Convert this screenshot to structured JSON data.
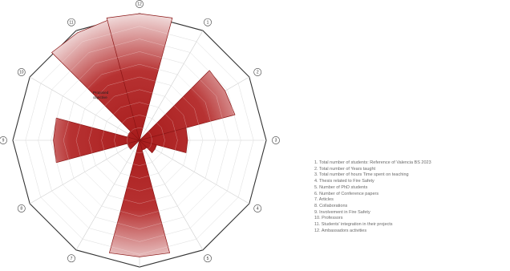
{
  "chart_data": {
    "type": "radar",
    "axis_count": 12,
    "ring_count": 10,
    "fill_color": "#a81c1c",
    "fill_light_color": "#f1dcdc",
    "outline_color": "#333333",
    "grid_color": "#cfcfcf",
    "axes": [
      {
        "number": "1",
        "label": "1. Total number of students: Reference of Valencia BS 2023",
        "value": 0.0,
        "ticks": []
      },
      {
        "number": "2",
        "label": "2. Total number of Years taught",
        "value": 0.78,
        "ticks": []
      },
      {
        "number": "3",
        "label": "3. Total number of hours Time spent on teaching",
        "value": 0.38,
        "ticks": []
      },
      {
        "number": "4",
        "label": "4. Thesis related to Fire Safety",
        "value": 0.14,
        "ticks": []
      },
      {
        "number": "5",
        "label": "5. Number of PhD students",
        "value": 0.08,
        "ticks": []
      },
      {
        "number": "6",
        "label": "6. Number of Conference papers",
        "value": 0.92,
        "ticks": []
      },
      {
        "number": "7",
        "label": "7. Articles",
        "value": 0.0,
        "ticks": []
      },
      {
        "number": "8",
        "label": "8. Collaborations",
        "value": 0.1,
        "ticks": []
      },
      {
        "number": "9",
        "label": "9. Involvement in Fire Safety",
        "value": 0.68,
        "ticks": []
      },
      {
        "number": "10",
        "label": "10. Professors",
        "value": 0.1,
        "ticks": []
      },
      {
        "number": "11",
        "label": "11. Students' integration in their projects",
        "value": 0.98,
        "ticks": []
      },
      {
        "number": "12",
        "label": "12. Ambassadors activities",
        "value": 1.0,
        "ticks": []
      }
    ],
    "annotations": [
      "Proposed",
      "objective"
    ]
  }
}
